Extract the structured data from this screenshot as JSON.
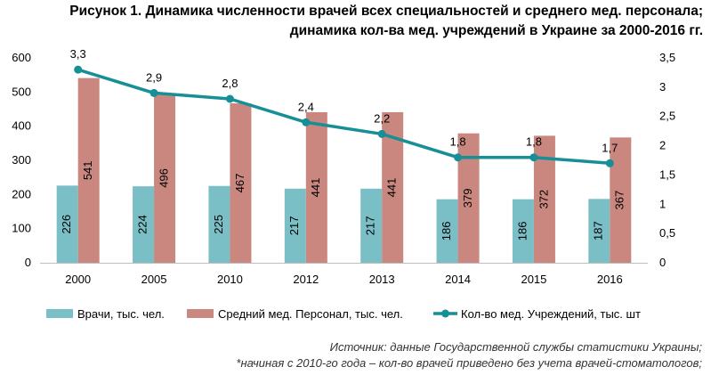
{
  "title": {
    "line1": "Рисунок 1. Динамика численности врачей всех специальностей и среднего мед. персонала;",
    "line2": "динамика кол-ва мед. учреждений в Украине за 2000-2016 гг."
  },
  "source": {
    "line1": "Источник: данные Государственной службы статистики Украины;",
    "line2": "*начиная с 2010-го года – кол-во врачей приведено без учета врачей-стоматологов;"
  },
  "chart_data": {
    "type": "bar",
    "categories": [
      "2000",
      "2005",
      "2010",
      "2012",
      "2013",
      "2014",
      "2015",
      "2016"
    ],
    "series": [
      {
        "name": "Врачи, тыс. чел.",
        "type": "bar",
        "axis": "left",
        "color": "#7bbfc6",
        "values": [
          226,
          224,
          225,
          217,
          217,
          186,
          186,
          187
        ],
        "labels": [
          "226",
          "224",
          "225",
          "217",
          "217",
          "186",
          "186",
          "187"
        ]
      },
      {
        "name": "Средний мед. Персонал, тыс. чел.",
        "type": "bar",
        "axis": "left",
        "color": "#c9877f",
        "values": [
          541,
          496,
          467,
          441,
          441,
          379,
          372,
          367
        ],
        "labels": [
          "541",
          "496",
          "467",
          "441",
          "441",
          "379",
          "372",
          "367"
        ]
      },
      {
        "name": "Кол-во мед. Учреждений, тыс. шт",
        "type": "line",
        "axis": "right",
        "color": "#178f97",
        "values": [
          3.3,
          2.9,
          2.8,
          2.4,
          2.2,
          1.8,
          1.8,
          1.7
        ],
        "labels": [
          "3,3",
          "2,9",
          "2,8",
          "2,4",
          "2,2",
          "1,8",
          "1,8",
          "1,7"
        ]
      }
    ],
    "y_left": {
      "min": 0,
      "max": 600,
      "ticks": [
        "0",
        "100",
        "200",
        "300",
        "400",
        "500",
        "600"
      ]
    },
    "y_right": {
      "min": 0,
      "max": 3.5,
      "ticks": [
        "0",
        "0,5",
        "1",
        "1,5",
        "2",
        "2,5",
        "3",
        "3,5"
      ]
    },
    "grid": false,
    "legend_position": "bottom"
  }
}
